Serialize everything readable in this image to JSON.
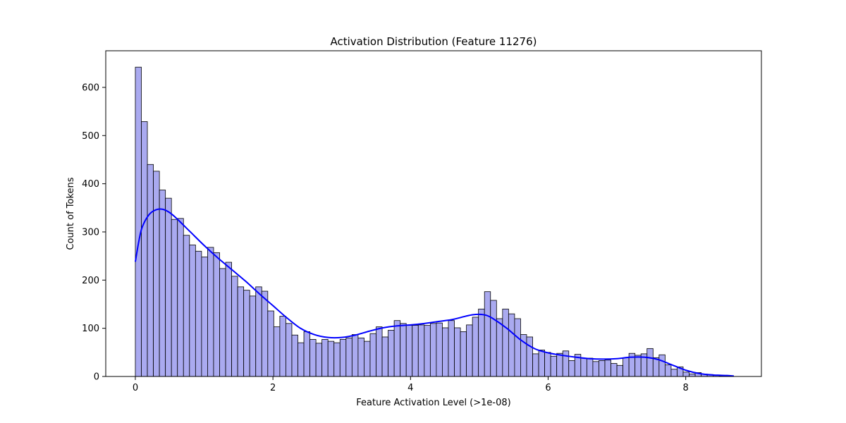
{
  "chart_data": {
    "type": "bar",
    "title": "Activation Distribution (Feature 11276)",
    "xlabel": "Feature Activation Level (>1e-08)",
    "ylabel": "Count of Tokens",
    "xlim": [
      -0.43,
      9.1
    ],
    "ylim": [
      0,
      676
    ],
    "grid": false,
    "bin_width": 0.0875,
    "bin_start": 0.0,
    "x_ticks": [
      0,
      2,
      4,
      6,
      8
    ],
    "y_ticks": [
      0,
      100,
      200,
      300,
      400,
      500,
      600
    ],
    "bar_fill": "#aaaaf0",
    "bar_edge": "#000000",
    "kde_color": "#0000ff",
    "counts": [
      642,
      529,
      440,
      426,
      387,
      370,
      326,
      328,
      293,
      273,
      260,
      248,
      268,
      257,
      224,
      237,
      208,
      186,
      179,
      167,
      186,
      177,
      136,
      103,
      125,
      110,
      86,
      70,
      93,
      77,
      69,
      77,
      73,
      70,
      77,
      80,
      87,
      80,
      73,
      89,
      103,
      82,
      96,
      116,
      110,
      106,
      106,
      107,
      106,
      110,
      111,
      101,
      116,
      101,
      93,
      107,
      123,
      140,
      176,
      158,
      120,
      140,
      130,
      120,
      87,
      82,
      47,
      55,
      50,
      42,
      48,
      53,
      33,
      46,
      38,
      38,
      31,
      33,
      34,
      27,
      23,
      39,
      48,
      44,
      47,
      58,
      39,
      45,
      24,
      15,
      20,
      9,
      5,
      8,
      5,
      4,
      2,
      1
    ],
    "kde": {
      "x": [
        0.0,
        0.05,
        0.1,
        0.2,
        0.3,
        0.4,
        0.5,
        0.6,
        0.8,
        1.0,
        1.2,
        1.4,
        1.6,
        1.8,
        2.0,
        2.2,
        2.4,
        2.6,
        2.8,
        3.0,
        3.2,
        3.4,
        3.6,
        3.8,
        4.0,
        4.2,
        4.4,
        4.6,
        4.8,
        4.9,
        5.0,
        5.1,
        5.2,
        5.4,
        5.6,
        5.8,
        6.0,
        6.2,
        6.4,
        6.6,
        6.8,
        7.0,
        7.2,
        7.4,
        7.6,
        7.8,
        8.0,
        8.2,
        8.4,
        8.6,
        8.7
      ],
      "y": [
        238,
        280,
        310,
        336,
        346,
        347,
        340,
        328,
        300,
        272,
        246,
        222,
        198,
        172,
        147,
        122,
        100,
        87,
        81,
        81,
        86,
        94,
        101,
        105,
        107,
        110,
        114,
        118,
        125,
        128,
        129,
        127,
        120,
        100,
        76,
        58,
        49,
        44,
        40,
        37,
        36,
        37,
        40,
        40,
        35,
        24,
        13,
        6,
        3,
        2,
        1
      ]
    }
  }
}
